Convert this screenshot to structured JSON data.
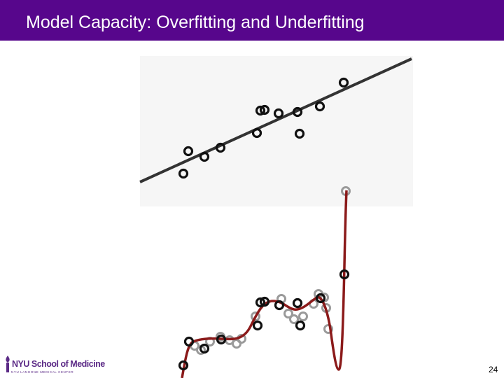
{
  "slide": {
    "title": "Model Capacity: Overfitting and Underfitting",
    "page_number": "24"
  },
  "logo": {
    "name": "NYU School of Medicine",
    "subtitle": "NYU LANGONE MEDICAL CENTER"
  },
  "colors": {
    "title_bar": "#57068c",
    "line_fit": "#333333",
    "poly_fit": "#8b1a1a",
    "points": "#111111",
    "faded_points": "#9a9a9a"
  }
}
